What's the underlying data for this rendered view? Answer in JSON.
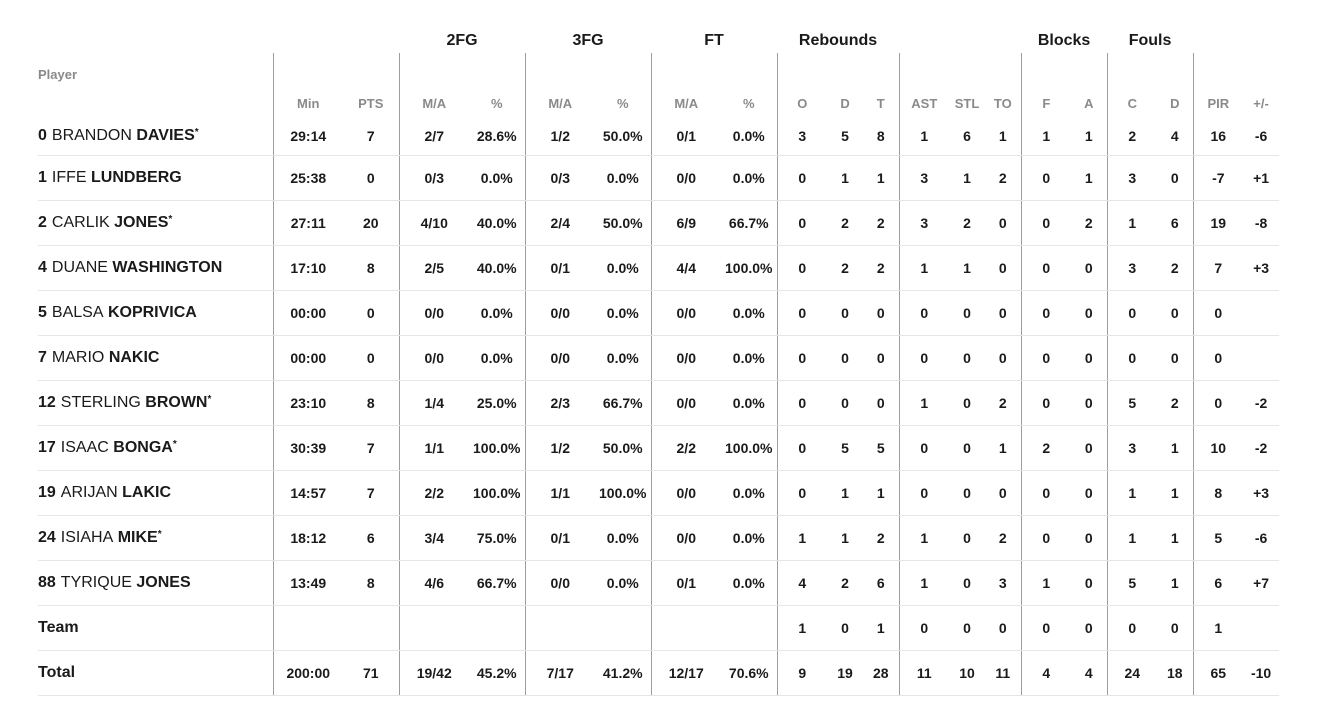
{
  "header": {
    "groups": {
      "fg2": "2FG",
      "fg3": "3FG",
      "ft": "FT",
      "rebounds": "Rebounds",
      "blocks": "Blocks",
      "fouls": "Fouls"
    },
    "columns": {
      "player": "Player",
      "min": "Min",
      "pts": "PTS",
      "fg2_ma": "M/A",
      "fg2_pct": "%",
      "fg3_ma": "M/A",
      "fg3_pct": "%",
      "ft_ma": "M/A",
      "ft_pct": "%",
      "reb_o": "O",
      "reb_d": "D",
      "reb_t": "T",
      "ast": "AST",
      "stl": "STL",
      "to": "TO",
      "blk_f": "F",
      "blk_a": "A",
      "foul_c": "C",
      "foul_d": "D",
      "pir": "PIR",
      "pm": "+/-"
    }
  },
  "rows": [
    {
      "num": "0",
      "first": "BRANDON",
      "last": "DAVIES",
      "star": "*",
      "min": "29:14",
      "pts": "7",
      "fg2_ma": "2/7",
      "fg2_pct": "28.6%",
      "fg3_ma": "1/2",
      "fg3_pct": "50.0%",
      "ft_ma": "0/1",
      "ft_pct": "0.0%",
      "o": "3",
      "d": "5",
      "t": "8",
      "ast": "1",
      "stl": "6",
      "to": "1",
      "bf": "1",
      "ba": "1",
      "fc": "2",
      "fd": "4",
      "pir": "16",
      "pm": "-6"
    },
    {
      "num": "1",
      "first": "IFFE",
      "last": "LUNDBERG",
      "star": "",
      "min": "25:38",
      "pts": "0",
      "fg2_ma": "0/3",
      "fg2_pct": "0.0%",
      "fg3_ma": "0/3",
      "fg3_pct": "0.0%",
      "ft_ma": "0/0",
      "ft_pct": "0.0%",
      "o": "0",
      "d": "1",
      "t": "1",
      "ast": "3",
      "stl": "1",
      "to": "2",
      "bf": "0",
      "ba": "1",
      "fc": "3",
      "fd": "0",
      "pir": "-7",
      "pm": "+1"
    },
    {
      "num": "2",
      "first": "CARLIK",
      "last": "JONES",
      "star": "*",
      "min": "27:11",
      "pts": "20",
      "fg2_ma": "4/10",
      "fg2_pct": "40.0%",
      "fg3_ma": "2/4",
      "fg3_pct": "50.0%",
      "ft_ma": "6/9",
      "ft_pct": "66.7%",
      "o": "0",
      "d": "2",
      "t": "2",
      "ast": "3",
      "stl": "2",
      "to": "0",
      "bf": "0",
      "ba": "2",
      "fc": "1",
      "fd": "6",
      "pir": "19",
      "pm": "-8"
    },
    {
      "num": "4",
      "first": "DUANE",
      "last": "WASHINGTON",
      "star": "",
      "min": "17:10",
      "pts": "8",
      "fg2_ma": "2/5",
      "fg2_pct": "40.0%",
      "fg3_ma": "0/1",
      "fg3_pct": "0.0%",
      "ft_ma": "4/4",
      "ft_pct": "100.0%",
      "o": "0",
      "d": "2",
      "t": "2",
      "ast": "1",
      "stl": "1",
      "to": "0",
      "bf": "0",
      "ba": "0",
      "fc": "3",
      "fd": "2",
      "pir": "7",
      "pm": "+3"
    },
    {
      "num": "5",
      "first": "BALSA",
      "last": "KOPRIVICA",
      "star": "",
      "min": "00:00",
      "pts": "0",
      "fg2_ma": "0/0",
      "fg2_pct": "0.0%",
      "fg3_ma": "0/0",
      "fg3_pct": "0.0%",
      "ft_ma": "0/0",
      "ft_pct": "0.0%",
      "o": "0",
      "d": "0",
      "t": "0",
      "ast": "0",
      "stl": "0",
      "to": "0",
      "bf": "0",
      "ba": "0",
      "fc": "0",
      "fd": "0",
      "pir": "0",
      "pm": ""
    },
    {
      "num": "7",
      "first": "MARIO",
      "last": "NAKIC",
      "star": "",
      "min": "00:00",
      "pts": "0",
      "fg2_ma": "0/0",
      "fg2_pct": "0.0%",
      "fg3_ma": "0/0",
      "fg3_pct": "0.0%",
      "ft_ma": "0/0",
      "ft_pct": "0.0%",
      "o": "0",
      "d": "0",
      "t": "0",
      "ast": "0",
      "stl": "0",
      "to": "0",
      "bf": "0",
      "ba": "0",
      "fc": "0",
      "fd": "0",
      "pir": "0",
      "pm": ""
    },
    {
      "num": "12",
      "first": "STERLING",
      "last": "BROWN",
      "star": "*",
      "min": "23:10",
      "pts": "8",
      "fg2_ma": "1/4",
      "fg2_pct": "25.0%",
      "fg3_ma": "2/3",
      "fg3_pct": "66.7%",
      "ft_ma": "0/0",
      "ft_pct": "0.0%",
      "o": "0",
      "d": "0",
      "t": "0",
      "ast": "1",
      "stl": "0",
      "to": "2",
      "bf": "0",
      "ba": "0",
      "fc": "5",
      "fd": "2",
      "pir": "0",
      "pm": "-2"
    },
    {
      "num": "17",
      "first": "ISAAC",
      "last": "BONGA",
      "star": "*",
      "min": "30:39",
      "pts": "7",
      "fg2_ma": "1/1",
      "fg2_pct": "100.0%",
      "fg3_ma": "1/2",
      "fg3_pct": "50.0%",
      "ft_ma": "2/2",
      "ft_pct": "100.0%",
      "o": "0",
      "d": "5",
      "t": "5",
      "ast": "0",
      "stl": "0",
      "to": "1",
      "bf": "2",
      "ba": "0",
      "fc": "3",
      "fd": "1",
      "pir": "10",
      "pm": "-2"
    },
    {
      "num": "19",
      "first": "ARIJAN",
      "last": "LAKIC",
      "star": "",
      "min": "14:57",
      "pts": "7",
      "fg2_ma": "2/2",
      "fg2_pct": "100.0%",
      "fg3_ma": "1/1",
      "fg3_pct": "100.0%",
      "ft_ma": "0/0",
      "ft_pct": "0.0%",
      "o": "0",
      "d": "1",
      "t": "1",
      "ast": "0",
      "stl": "0",
      "to": "0",
      "bf": "0",
      "ba": "0",
      "fc": "1",
      "fd": "1",
      "pir": "8",
      "pm": "+3"
    },
    {
      "num": "24",
      "first": "ISIAHA",
      "last": "MIKE",
      "star": "*",
      "min": "18:12",
      "pts": "6",
      "fg2_ma": "3/4",
      "fg2_pct": "75.0%",
      "fg3_ma": "0/1",
      "fg3_pct": "0.0%",
      "ft_ma": "0/0",
      "ft_pct": "0.0%",
      "o": "1",
      "d": "1",
      "t": "2",
      "ast": "1",
      "stl": "0",
      "to": "2",
      "bf": "0",
      "ba": "0",
      "fc": "1",
      "fd": "1",
      "pir": "5",
      "pm": "-6"
    },
    {
      "num": "88",
      "first": "TYRIQUE",
      "last": "JONES",
      "star": "",
      "min": "13:49",
      "pts": "8",
      "fg2_ma": "4/6",
      "fg2_pct": "66.7%",
      "fg3_ma": "0/0",
      "fg3_pct": "0.0%",
      "ft_ma": "0/1",
      "ft_pct": "0.0%",
      "o": "4",
      "d": "2",
      "t": "6",
      "ast": "1",
      "stl": "0",
      "to": "3",
      "bf": "1",
      "ba": "0",
      "fc": "5",
      "fd": "1",
      "pir": "6",
      "pm": "+7"
    }
  ],
  "team": {
    "label": "Team",
    "min": "",
    "pts": "",
    "fg2_ma": "",
    "fg2_pct": "",
    "fg3_ma": "",
    "fg3_pct": "",
    "ft_ma": "",
    "ft_pct": "",
    "o": "1",
    "d": "0",
    "t": "1",
    "ast": "0",
    "stl": "0",
    "to": "0",
    "bf": "0",
    "ba": "0",
    "fc": "0",
    "fd": "0",
    "pir": "1",
    "pm": ""
  },
  "total": {
    "label": "Total",
    "min": "200:00",
    "pts": "71",
    "fg2_ma": "19/42",
    "fg2_pct": "45.2%",
    "fg3_ma": "7/17",
    "fg3_pct": "41.2%",
    "ft_ma": "12/17",
    "ft_pct": "70.6%",
    "o": "9",
    "d": "19",
    "t": "28",
    "ast": "11",
    "stl": "10",
    "to": "11",
    "bf": "4",
    "ba": "4",
    "fc": "24",
    "fd": "18",
    "pir": "65",
    "pm": "-10"
  }
}
